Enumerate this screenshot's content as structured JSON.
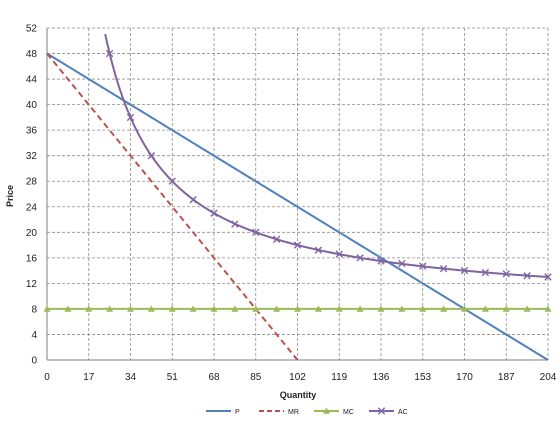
{
  "chart_data": {
    "type": "line",
    "title": "",
    "xlabel": "Quantity",
    "ylabel": "Price",
    "xlim": [
      0,
      204
    ],
    "ylim": [
      0,
      52
    ],
    "x_ticks": [
      0,
      17,
      34,
      51,
      68,
      85,
      102,
      119,
      136,
      153,
      170,
      187,
      204
    ],
    "y_ticks": [
      0,
      4,
      8,
      12,
      16,
      20,
      24,
      28,
      32,
      36,
      40,
      44,
      48,
      52
    ],
    "grid": true,
    "legend_position": "bottom",
    "series": [
      {
        "name": "P",
        "style": "solid",
        "color": "#4f81bd",
        "marker": "none",
        "points": [
          [
            0,
            48
          ],
          [
            204,
            0
          ]
        ]
      },
      {
        "name": "MR",
        "style": "dashed",
        "color": "#c0504d",
        "marker": "none",
        "points": [
          [
            0,
            48
          ],
          [
            102,
            0
          ]
        ]
      },
      {
        "name": "MC",
        "style": "solid",
        "color": "#9bbb59",
        "marker": "triangle",
        "points": [
          [
            0,
            8
          ],
          [
            8.5,
            8
          ],
          [
            17,
            8
          ],
          [
            25.5,
            8
          ],
          [
            34,
            8
          ],
          [
            42.5,
            8
          ],
          [
            51,
            8
          ],
          [
            59.5,
            8
          ],
          [
            68,
            8
          ],
          [
            76.5,
            8
          ],
          [
            85,
            8
          ],
          [
            93.5,
            8
          ],
          [
            102,
            8
          ],
          [
            110.5,
            8
          ],
          [
            119,
            8
          ],
          [
            127.5,
            8
          ],
          [
            136,
            8
          ],
          [
            144.5,
            8
          ],
          [
            153,
            8
          ],
          [
            161.5,
            8
          ],
          [
            170,
            8
          ],
          [
            178.5,
            8
          ],
          [
            187,
            8
          ],
          [
            195.5,
            8
          ],
          [
            204,
            8
          ]
        ]
      },
      {
        "name": "AC",
        "style": "solid",
        "color": "#8064a2",
        "marker": "x",
        "points": [
          [
            25.5,
            48
          ],
          [
            34,
            38
          ],
          [
            42.5,
            32
          ],
          [
            51,
            28
          ],
          [
            59.5,
            25.1
          ],
          [
            68,
            23
          ],
          [
            76.5,
            21.3
          ],
          [
            85,
            20
          ],
          [
            93.5,
            18.9
          ],
          [
            102,
            18
          ],
          [
            110.5,
            17.2
          ],
          [
            119,
            16.6
          ],
          [
            127.5,
            16
          ],
          [
            136,
            15.5
          ],
          [
            144.5,
            15.1
          ],
          [
            153,
            14.7
          ],
          [
            161.5,
            14.3
          ],
          [
            170,
            14
          ],
          [
            178.5,
            13.7
          ],
          [
            187,
            13.5
          ],
          [
            195.5,
            13.2
          ],
          [
            204,
            13
          ]
        ]
      }
    ]
  }
}
